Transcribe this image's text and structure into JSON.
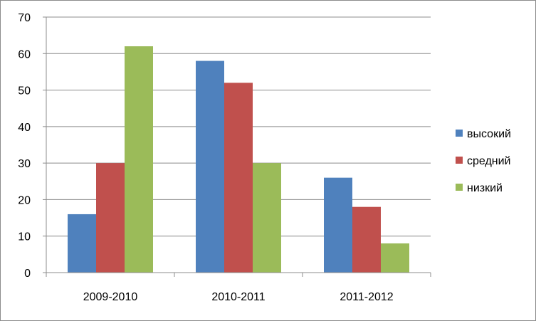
{
  "chart_data": {
    "type": "bar",
    "categories": [
      "2009-2010",
      "2010-2011",
      "2011-2012"
    ],
    "series": [
      {
        "name": "высокий",
        "values": [
          16,
          58,
          26
        ],
        "color": "#4f81bd"
      },
      {
        "name": "средний",
        "values": [
          30,
          52,
          18
        ],
        "color": "#c0504d"
      },
      {
        "name": "низкий",
        "values": [
          62,
          30,
          8
        ],
        "color": "#9bbb59"
      }
    ],
    "ylim": [
      0,
      70
    ],
    "yticks": [
      0,
      10,
      20,
      30,
      40,
      50,
      60,
      70
    ],
    "grid": true,
    "legend_position": "right",
    "title": "",
    "xlabel": "",
    "ylabel": ""
  }
}
